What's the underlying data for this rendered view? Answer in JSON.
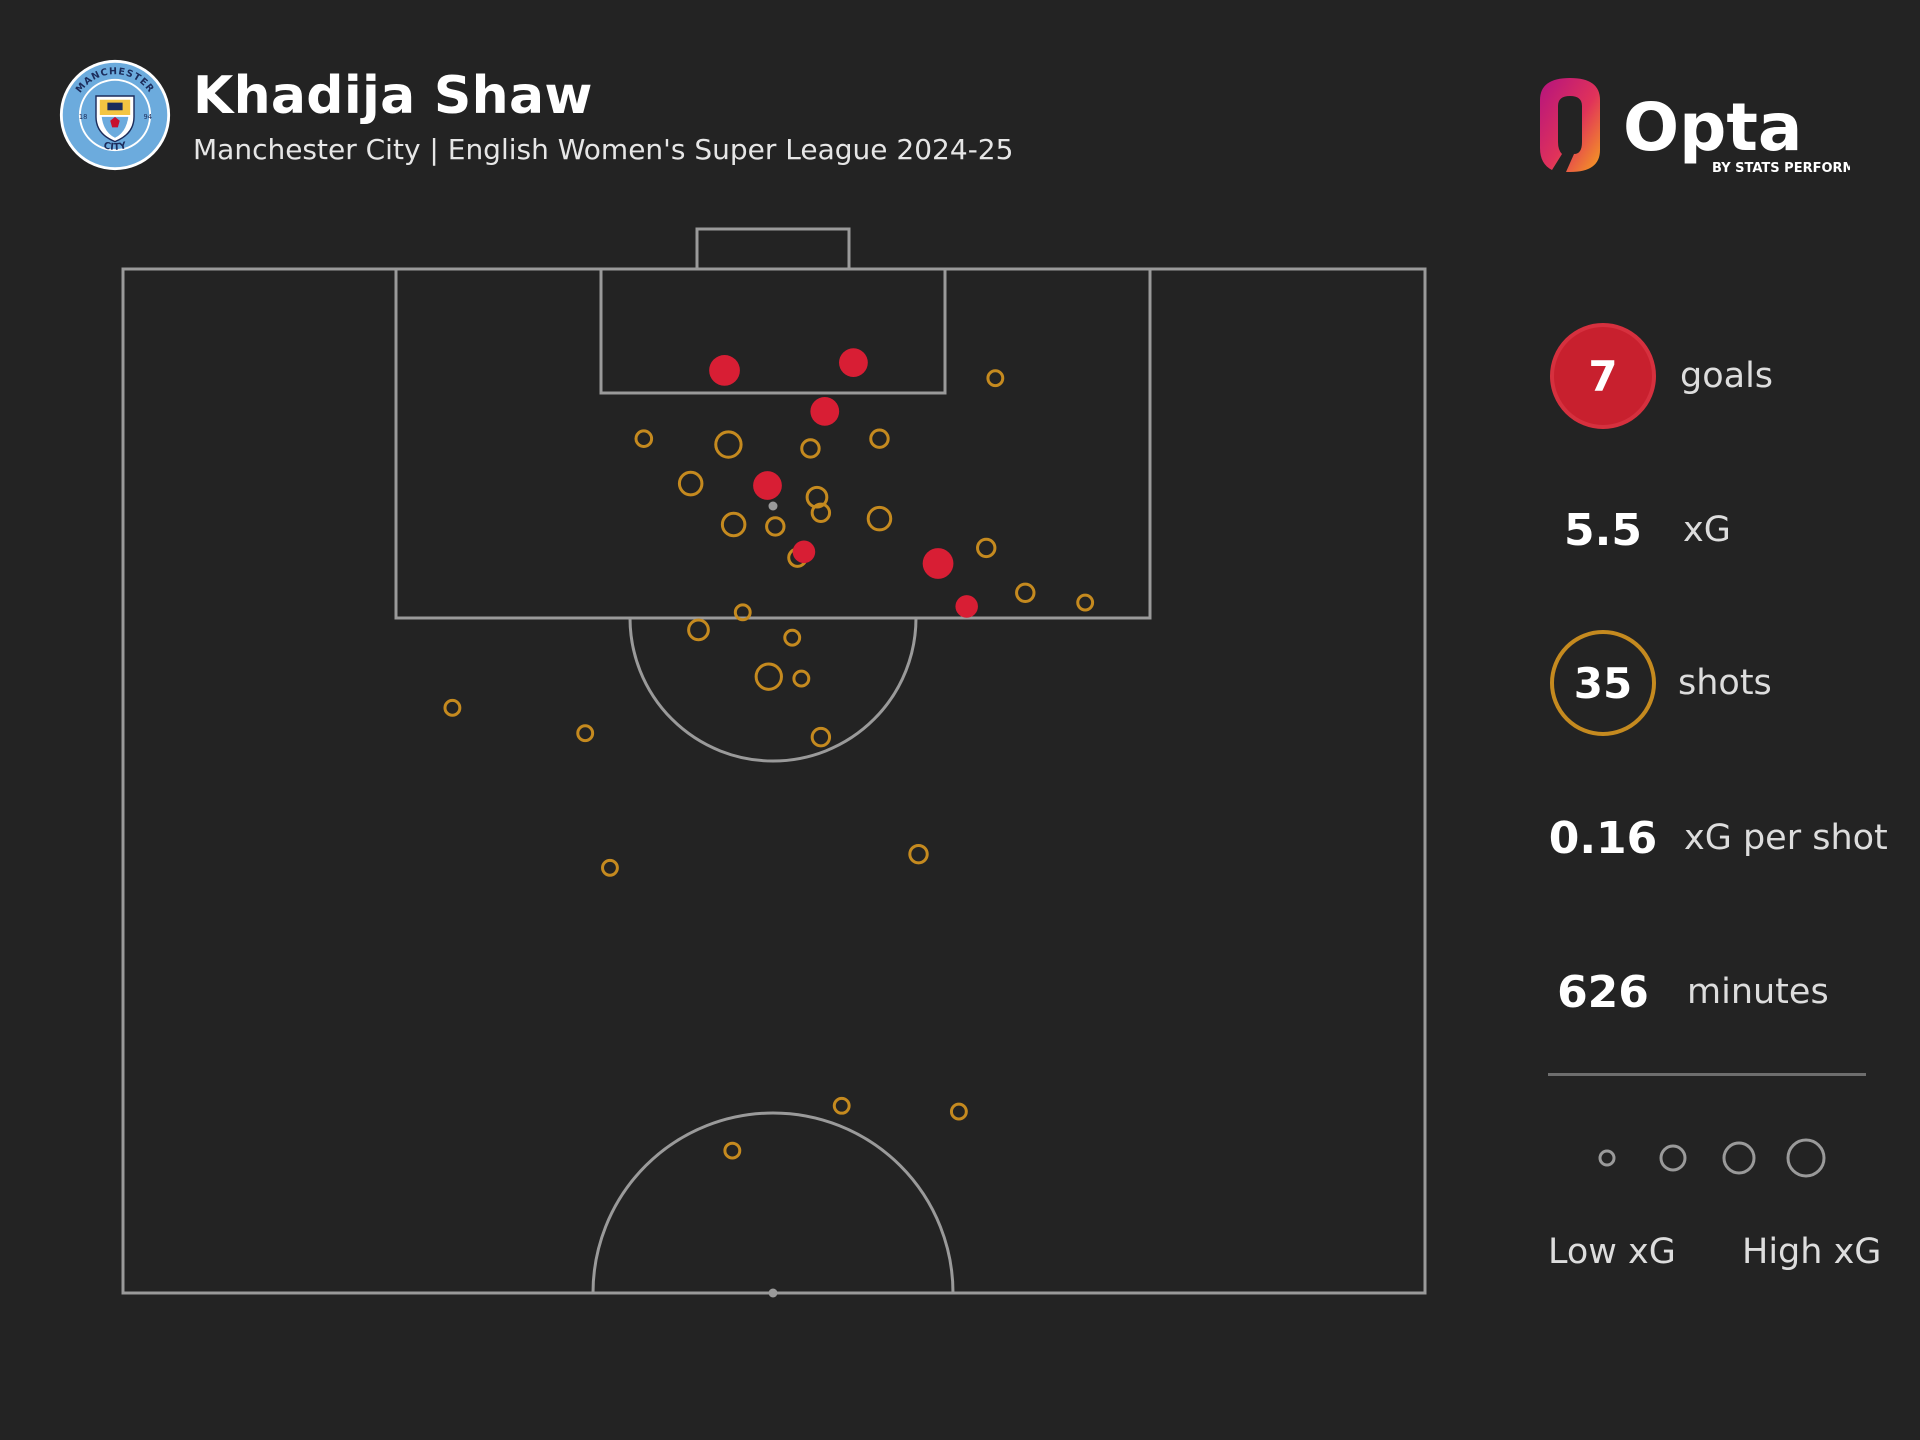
{
  "header": {
    "player_name": "Khadija Shaw",
    "subtitle": "Manchester City | English Women's Super League 2024-25"
  },
  "crest": {
    "club_text_top": "MANCHESTER",
    "club_text_bottom": "CITY",
    "year_left": "18",
    "year_right": "94",
    "colors": {
      "ring": "#6cabdd",
      "navy": "#1c2c5b",
      "gold": "#f4c542",
      "red": "#c8102e"
    }
  },
  "brand": {
    "name": "Opta",
    "tagline": "BY STATS PERFORM",
    "colors": {
      "magenta": "#c8147a",
      "orange": "#f28c28"
    }
  },
  "stats": [
    {
      "value": "7",
      "label": "goals",
      "style": "goals"
    },
    {
      "value": "5.5",
      "label": "xG",
      "style": "plain"
    },
    {
      "value": "35",
      "label": "shots",
      "style": "shots"
    },
    {
      "value": "0.16",
      "label": "xG per shot",
      "style": "plain"
    },
    {
      "value": "626",
      "label": "minutes",
      "style": "plain"
    }
  ],
  "legend": {
    "low_label": "Low xG",
    "high_label": "High xG",
    "sizes": [
      "low",
      "mid-low",
      "mid-high",
      "high"
    ]
  },
  "colors": {
    "background": "#232323",
    "pitch_lines": "#9a9a9a",
    "goal": "#d81e34",
    "non_goal": "#c58a1f",
    "penalty_spot": "#9a9a9a"
  },
  "chart_data": {
    "type": "scatter",
    "description_units": "pitch coordinates: x across pitch 0-100 (left to right), y distance from goal line in metres",
    "xlim": [
      0,
      100
    ],
    "ylim": [
      0,
      52.5
    ],
    "goals": [
      {
        "x": 46.2,
        "y": 5.2,
        "xg": 0.55
      },
      {
        "x": 56.1,
        "y": 4.8,
        "xg": 0.45
      },
      {
        "x": 53.9,
        "y": 7.3,
        "xg": 0.45
      },
      {
        "x": 49.5,
        "y": 11.1,
        "xg": 0.45
      },
      {
        "x": 52.3,
        "y": 14.5,
        "xg": 0.2
      },
      {
        "x": 62.6,
        "y": 15.1,
        "xg": 0.55
      },
      {
        "x": 64.8,
        "y": 17.3,
        "xg": 0.2
      }
    ],
    "shots": [
      {
        "x": 40.0,
        "y": 8.7,
        "xg": 0.04
      },
      {
        "x": 46.5,
        "y": 9.0,
        "xg": 0.3
      },
      {
        "x": 52.8,
        "y": 9.2,
        "xg": 0.07
      },
      {
        "x": 58.1,
        "y": 8.7,
        "xg": 0.07
      },
      {
        "x": 67.0,
        "y": 5.6,
        "xg": 0.03
      },
      {
        "x": 43.6,
        "y": 11.0,
        "xg": 0.2
      },
      {
        "x": 46.9,
        "y": 13.1,
        "xg": 0.2
      },
      {
        "x": 50.1,
        "y": 13.2,
        "xg": 0.07
      },
      {
        "x": 53.3,
        "y": 11.7,
        "xg": 0.12
      },
      {
        "x": 53.6,
        "y": 12.5,
        "xg": 0.07
      },
      {
        "x": 58.1,
        "y": 12.8,
        "xg": 0.2
      },
      {
        "x": 51.8,
        "y": 14.8,
        "xg": 0.07
      },
      {
        "x": 66.3,
        "y": 14.3,
        "xg": 0.07
      },
      {
        "x": 69.3,
        "y": 16.6,
        "xg": 0.07
      },
      {
        "x": 73.9,
        "y": 17.1,
        "xg": 0.03
      },
      {
        "x": 44.2,
        "y": 18.5,
        "xg": 0.12
      },
      {
        "x": 47.6,
        "y": 17.6,
        "xg": 0.03
      },
      {
        "x": 51.4,
        "y": 18.9,
        "xg": 0.03
      },
      {
        "x": 49.6,
        "y": 20.9,
        "xg": 0.3
      },
      {
        "x": 52.1,
        "y": 21.0,
        "xg": 0.03
      },
      {
        "x": 25.3,
        "y": 22.5,
        "xg": 0.03
      },
      {
        "x": 35.5,
        "y": 23.8,
        "xg": 0.03
      },
      {
        "x": 53.6,
        "y": 24.0,
        "xg": 0.07
      },
      {
        "x": 61.1,
        "y": 30.0,
        "xg": 0.07
      },
      {
        "x": 37.4,
        "y": 30.7,
        "xg": 0.03
      },
      {
        "x": 55.2,
        "y": 42.9,
        "xg": 0.03
      },
      {
        "x": 64.2,
        "y": 43.2,
        "xg": 0.03
      },
      {
        "x": 46.8,
        "y": 45.2,
        "xg": 0.03
      }
    ]
  }
}
